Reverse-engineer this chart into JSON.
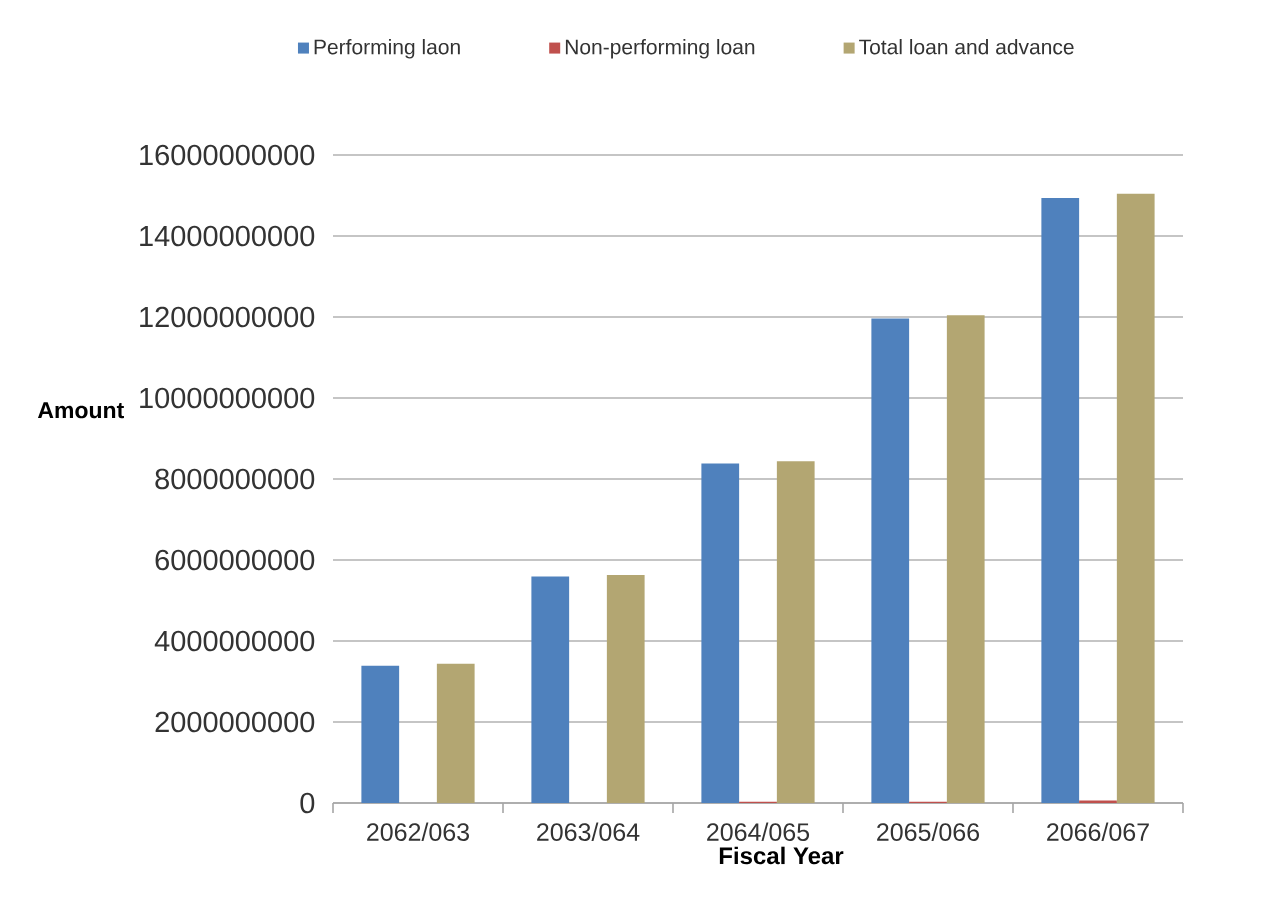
{
  "chart_data": {
    "type": "bar",
    "xlabel": "Fiscal Year",
    "ylabel": "Amount",
    "categories": [
      "2062/063",
      "2063/064",
      "2064/065",
      "2065/066",
      "2066/067"
    ],
    "series": [
      {
        "name": "Performing laon",
        "color": "#4f81bd",
        "values": [
          3390000000,
          5590000000,
          8380000000,
          11960000000,
          14940000000
        ]
      },
      {
        "name": "Non-performing loan",
        "color": "#c0504d",
        "values": [
          0,
          0,
          30000000,
          30000000,
          60000000
        ]
      },
      {
        "name": "Total loan and advance",
        "color": "#b3a672",
        "values": [
          3440000000,
          5630000000,
          8440000000,
          12040000000,
          15040000000
        ]
      }
    ],
    "ylim": [
      0,
      16000000000
    ],
    "yticks": [
      0,
      2000000000,
      4000000000,
      6000000000,
      8000000000,
      10000000000,
      12000000000,
      14000000000,
      16000000000
    ],
    "grid": "y",
    "legend": "top"
  }
}
